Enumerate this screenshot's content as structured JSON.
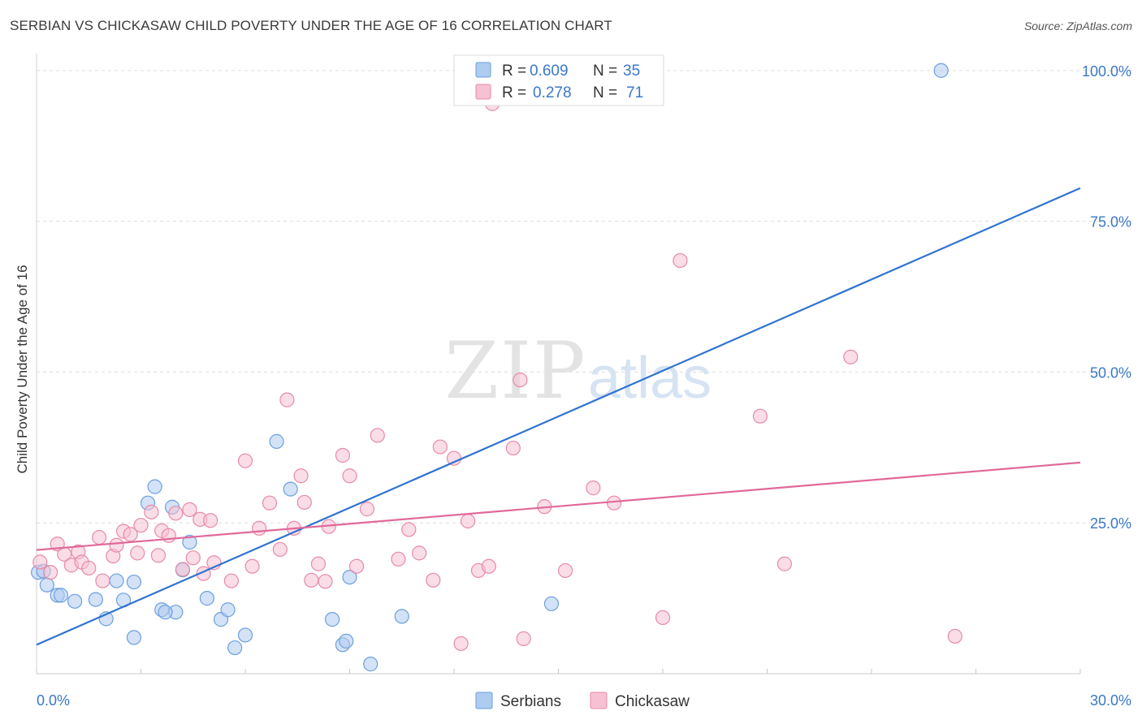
{
  "title": "SERBIAN VS CHICKASAW CHILD POVERTY UNDER THE AGE OF 16 CORRELATION CHART",
  "source": "Source: ZipAtlas.com",
  "watermark": {
    "zip": "ZIP",
    "atlas": "atlas"
  },
  "legend": {
    "rows": [
      {
        "r_label": "R =",
        "r_value": "0.609",
        "n_label": "N =",
        "n_value": "35"
      },
      {
        "r_label": "R =",
        "r_value": "0.278",
        "n_label": "N =",
        "n_value": "71"
      }
    ]
  },
  "bottom_legend": [
    "Serbians",
    "Chickasaw"
  ],
  "colors": {
    "serbians_fill": "#aecbf0",
    "serbians_stroke": "#6d9fde",
    "serbians_line": "#2f73d0",
    "chickasaw_fill": "#f6c1d2",
    "chickasaw_stroke": "#e78aa8",
    "chickasaw_line": "#e0699a",
    "tick_label": "#3b78c9",
    "grid": "#dddddd"
  },
  "chart_data": {
    "type": "scatter",
    "title": "SERBIAN VS CHICKASAW CHILD POVERTY UNDER THE AGE OF 16 CORRELATION CHART",
    "xlabel": "",
    "ylabel": "Child Poverty Under the Age of 16",
    "xlim": [
      0,
      30
    ],
    "ylim": [
      0,
      102
    ],
    "x_tick_labels": [
      "0.0%",
      "30.0%"
    ],
    "y_ticks": [
      25,
      50,
      75,
      100
    ],
    "y_tick_labels": [
      "25.0%",
      "50.0%",
      "75.0%",
      "100.0%"
    ],
    "grid": true,
    "legend_position": "top-center",
    "series": [
      {
        "name": "Serbians",
        "points": [
          [
            0.05,
            16.8
          ],
          [
            0.3,
            14.7
          ],
          [
            0.6,
            13.0
          ],
          [
            0.7,
            13.0
          ],
          [
            1.1,
            12.0
          ],
          [
            1.7,
            12.3
          ],
          [
            2.3,
            15.4
          ],
          [
            2.0,
            9.1
          ],
          [
            2.5,
            12.2
          ],
          [
            2.8,
            15.2
          ],
          [
            2.8,
            6.0
          ],
          [
            3.4,
            31.0
          ],
          [
            3.2,
            28.3
          ],
          [
            3.6,
            10.6
          ],
          [
            3.9,
            27.6
          ],
          [
            4.0,
            10.2
          ],
          [
            4.2,
            17.2
          ],
          [
            4.4,
            21.8
          ],
          [
            4.9,
            12.5
          ],
          [
            5.3,
            9.0
          ],
          [
            5.5,
            10.6
          ],
          [
            5.7,
            4.3
          ],
          [
            6.0,
            6.4
          ],
          [
            6.9,
            38.5
          ],
          [
            7.3,
            30.6
          ],
          [
            8.5,
            9.0
          ],
          [
            8.8,
            4.8
          ],
          [
            8.9,
            5.4
          ],
          [
            9.0,
            16.0
          ],
          [
            9.6,
            1.6
          ],
          [
            10.5,
            9.5
          ],
          [
            14.8,
            11.6
          ],
          [
            26.0,
            100.0
          ],
          [
            0.2,
            17.0
          ],
          [
            3.7,
            10.2
          ]
        ],
        "trend": {
          "x": [
            0,
            30
          ],
          "y": [
            4.8,
            80.5
          ]
        }
      },
      {
        "name": "Chickasaw",
        "points": [
          [
            0.1,
            18.5
          ],
          [
            0.4,
            16.8
          ],
          [
            0.6,
            21.5
          ],
          [
            0.8,
            19.8
          ],
          [
            1.0,
            18.0
          ],
          [
            1.2,
            20.2
          ],
          [
            1.3,
            18.5
          ],
          [
            1.5,
            17.5
          ],
          [
            1.8,
            22.6
          ],
          [
            1.9,
            15.4
          ],
          [
            2.2,
            19.5
          ],
          [
            2.3,
            21.3
          ],
          [
            2.5,
            23.6
          ],
          [
            2.7,
            23.1
          ],
          [
            2.9,
            20.0
          ],
          [
            3.0,
            24.6
          ],
          [
            3.3,
            26.8
          ],
          [
            3.5,
            19.6
          ],
          [
            3.6,
            23.7
          ],
          [
            3.8,
            22.9
          ],
          [
            4.0,
            26.6
          ],
          [
            4.2,
            17.3
          ],
          [
            4.4,
            27.2
          ],
          [
            4.5,
            19.2
          ],
          [
            4.7,
            25.6
          ],
          [
            4.8,
            16.6
          ],
          [
            5.0,
            25.4
          ],
          [
            5.1,
            18.4
          ],
          [
            5.6,
            15.4
          ],
          [
            6.0,
            35.3
          ],
          [
            6.2,
            17.8
          ],
          [
            6.4,
            24.1
          ],
          [
            6.7,
            28.3
          ],
          [
            7.0,
            20.6
          ],
          [
            7.2,
            45.4
          ],
          [
            7.4,
            24.1
          ],
          [
            7.6,
            32.8
          ],
          [
            7.7,
            28.4
          ],
          [
            7.9,
            15.5
          ],
          [
            8.1,
            18.2
          ],
          [
            8.3,
            15.3
          ],
          [
            8.4,
            24.4
          ],
          [
            8.8,
            36.2
          ],
          [
            9.0,
            32.8
          ],
          [
            9.2,
            17.8
          ],
          [
            9.5,
            27.3
          ],
          [
            9.8,
            39.5
          ],
          [
            10.4,
            19.0
          ],
          [
            10.7,
            23.9
          ],
          [
            11.0,
            20.0
          ],
          [
            11.4,
            15.5
          ],
          [
            11.6,
            37.6
          ],
          [
            12.0,
            35.7
          ],
          [
            12.2,
            5.0
          ],
          [
            12.4,
            25.3
          ],
          [
            12.7,
            17.1
          ],
          [
            13.0,
            17.8
          ],
          [
            13.7,
            37.4
          ],
          [
            13.9,
            48.7
          ],
          [
            14.0,
            5.8
          ],
          [
            14.6,
            27.7
          ],
          [
            15.2,
            17.1
          ],
          [
            16.0,
            30.8
          ],
          [
            16.6,
            28.3
          ],
          [
            18.0,
            9.3
          ],
          [
            18.5,
            68.5
          ],
          [
            20.8,
            42.7
          ],
          [
            21.5,
            18.2
          ],
          [
            23.4,
            52.5
          ],
          [
            26.4,
            6.2
          ],
          [
            13.1,
            94.5
          ]
        ],
        "trend": {
          "x": [
            0,
            30
          ],
          "y": [
            20.5,
            35.0
          ]
        }
      }
    ]
  }
}
